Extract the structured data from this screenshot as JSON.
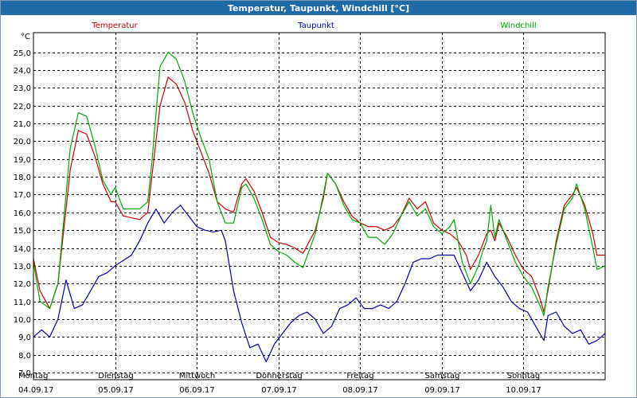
{
  "window": {
    "title": "Temperatur, Taupunkt, Windchill [°C]"
  },
  "chart_data": {
    "type": "line",
    "title": "Temperatur, Taupunkt, Windchill [°C]",
    "ylabel": "°C",
    "ylim": [
      6.6,
      26.1
    ],
    "xlim": [
      0,
      7
    ],
    "yticks": [
      "7,0",
      "8,0",
      "9,0",
      "10,0",
      "11,0",
      "12,0",
      "13,0",
      "14,0",
      "15,0",
      "16,0",
      "17,0",
      "18,0",
      "19,0",
      "20,0",
      "21,0",
      "22,0",
      "23,0",
      "24,0",
      "25,0"
    ],
    "ytick_values": [
      7,
      8,
      9,
      10,
      11,
      12,
      13,
      14,
      15,
      16,
      17,
      18,
      19,
      20,
      21,
      22,
      23,
      24,
      25
    ],
    "days": [
      {
        "day": "Montag",
        "date": "04.09.17"
      },
      {
        "day": "Dienstag",
        "date": "05.09.17"
      },
      {
        "day": "Mittwoch",
        "date": "06.09.17"
      },
      {
        "day": "Donnerstag",
        "date": "07.09.17"
      },
      {
        "day": "Freitag",
        "date": "08.09.17"
      },
      {
        "day": "Samstag",
        "date": "09.09.17"
      },
      {
        "day": "Sonntag",
        "date": "10.09.17"
      }
    ],
    "series": [
      {
        "name": "Temperatur",
        "color": "#cc0000",
        "points": [
          [
            0,
            13.4
          ],
          [
            0.08,
            11.6
          ],
          [
            0.2,
            10.6
          ],
          [
            0.3,
            12.0
          ],
          [
            0.45,
            18.4
          ],
          [
            0.55,
            20.6
          ],
          [
            0.65,
            20.4
          ],
          [
            0.75,
            19.2
          ],
          [
            0.85,
            17.6
          ],
          [
            0.95,
            16.6
          ],
          [
            1.0,
            16.6
          ],
          [
            1.1,
            15.8
          ],
          [
            1.3,
            15.6
          ],
          [
            1.4,
            16.0
          ],
          [
            1.45,
            18.0
          ],
          [
            1.55,
            22.0
          ],
          [
            1.65,
            23.6
          ],
          [
            1.75,
            23.2
          ],
          [
            1.85,
            22.2
          ],
          [
            1.95,
            20.6
          ],
          [
            2.05,
            19.4
          ],
          [
            2.15,
            18.2
          ],
          [
            2.25,
            16.6
          ],
          [
            2.35,
            16.2
          ],
          [
            2.45,
            16.0
          ],
          [
            2.55,
            17.6
          ],
          [
            2.6,
            17.9
          ],
          [
            2.7,
            17.2
          ],
          [
            2.8,
            16.0
          ],
          [
            2.9,
            14.6
          ],
          [
            3.0,
            14.3
          ],
          [
            3.1,
            14.2
          ],
          [
            3.2,
            14.0
          ],
          [
            3.3,
            13.7
          ],
          [
            3.45,
            15.0
          ],
          [
            3.55,
            16.8
          ],
          [
            3.6,
            18.2
          ],
          [
            3.7,
            17.6
          ],
          [
            3.8,
            16.6
          ],
          [
            3.9,
            15.8
          ],
          [
            4.0,
            15.4
          ],
          [
            4.1,
            15.2
          ],
          [
            4.2,
            15.2
          ],
          [
            4.3,
            15.0
          ],
          [
            4.4,
            15.2
          ],
          [
            4.5,
            15.8
          ],
          [
            4.6,
            16.8
          ],
          [
            4.7,
            16.2
          ],
          [
            4.8,
            16.6
          ],
          [
            4.9,
            15.4
          ],
          [
            5.0,
            15.0
          ],
          [
            5.1,
            14.8
          ],
          [
            5.2,
            14.4
          ],
          [
            5.3,
            13.6
          ],
          [
            5.35,
            12.8
          ],
          [
            5.45,
            13.6
          ],
          [
            5.5,
            14.2
          ],
          [
            5.55,
            14.8
          ],
          [
            5.6,
            15.0
          ],
          [
            5.65,
            14.4
          ],
          [
            5.7,
            15.4
          ],
          [
            5.8,
            14.6
          ],
          [
            5.9,
            13.6
          ],
          [
            6.0,
            12.8
          ],
          [
            6.1,
            12.4
          ],
          [
            6.2,
            11.2
          ],
          [
            6.25,
            10.4
          ],
          [
            6.3,
            11.6
          ],
          [
            6.4,
            14.4
          ],
          [
            6.5,
            16.4
          ],
          [
            6.6,
            17.0
          ],
          [
            6.65,
            17.4
          ],
          [
            6.75,
            16.4
          ],
          [
            6.85,
            14.8
          ],
          [
            6.9,
            13.6
          ],
          [
            7.0,
            13.6
          ]
        ]
      },
      {
        "name": "Taupunkt",
        "color": "#0000aa",
        "points": [
          [
            0,
            9.0
          ],
          [
            0.1,
            9.4
          ],
          [
            0.2,
            9.0
          ],
          [
            0.3,
            10.0
          ],
          [
            0.4,
            12.2
          ],
          [
            0.5,
            10.6
          ],
          [
            0.6,
            10.8
          ],
          [
            0.7,
            11.6
          ],
          [
            0.8,
            12.4
          ],
          [
            0.9,
            12.6
          ],
          [
            1.0,
            13.0
          ],
          [
            1.1,
            13.3
          ],
          [
            1.2,
            13.6
          ],
          [
            1.3,
            14.4
          ],
          [
            1.4,
            15.4
          ],
          [
            1.5,
            16.2
          ],
          [
            1.6,
            15.4
          ],
          [
            1.7,
            16.0
          ],
          [
            1.8,
            16.4
          ],
          [
            1.9,
            15.8
          ],
          [
            2.0,
            15.2
          ],
          [
            2.1,
            15.0
          ],
          [
            2.2,
            14.9
          ],
          [
            2.3,
            15.0
          ],
          [
            2.35,
            14.4
          ],
          [
            2.45,
            11.6
          ],
          [
            2.55,
            9.8
          ],
          [
            2.65,
            8.4
          ],
          [
            2.75,
            8.6
          ],
          [
            2.85,
            7.6
          ],
          [
            2.95,
            8.6
          ],
          [
            3.05,
            9.2
          ],
          [
            3.15,
            9.8
          ],
          [
            3.25,
            10.2
          ],
          [
            3.35,
            10.4
          ],
          [
            3.45,
            10.0
          ],
          [
            3.55,
            9.2
          ],
          [
            3.65,
            9.6
          ],
          [
            3.75,
            10.6
          ],
          [
            3.85,
            10.8
          ],
          [
            3.95,
            11.2
          ],
          [
            4.05,
            10.6
          ],
          [
            4.15,
            10.6
          ],
          [
            4.25,
            10.8
          ],
          [
            4.35,
            10.6
          ],
          [
            4.45,
            11.0
          ],
          [
            4.55,
            12.0
          ],
          [
            4.65,
            13.2
          ],
          [
            4.75,
            13.4
          ],
          [
            4.85,
            13.4
          ],
          [
            4.95,
            13.6
          ],
          [
            5.05,
            13.6
          ],
          [
            5.15,
            13.6
          ],
          [
            5.25,
            12.6
          ],
          [
            5.35,
            11.6
          ],
          [
            5.45,
            12.2
          ],
          [
            5.55,
            13.2
          ],
          [
            5.65,
            12.4
          ],
          [
            5.75,
            11.8
          ],
          [
            5.85,
            11.0
          ],
          [
            5.95,
            10.6
          ],
          [
            6.05,
            10.4
          ],
          [
            6.15,
            9.6
          ],
          [
            6.25,
            8.8
          ],
          [
            6.3,
            10.2
          ],
          [
            6.4,
            10.4
          ],
          [
            6.5,
            9.6
          ],
          [
            6.6,
            9.2
          ],
          [
            6.7,
            9.4
          ],
          [
            6.8,
            8.6
          ],
          [
            6.9,
            8.8
          ],
          [
            7.0,
            9.2
          ]
        ]
      },
      {
        "name": "Windchill",
        "color": "#00aa00",
        "points": [
          [
            0,
            13.2
          ],
          [
            0.08,
            11.0
          ],
          [
            0.2,
            10.6
          ],
          [
            0.3,
            12.0
          ],
          [
            0.45,
            19.6
          ],
          [
            0.55,
            21.6
          ],
          [
            0.65,
            21.4
          ],
          [
            0.75,
            19.8
          ],
          [
            0.85,
            17.8
          ],
          [
            0.95,
            17.0
          ],
          [
            1.0,
            17.4
          ],
          [
            1.1,
            16.2
          ],
          [
            1.3,
            16.2
          ],
          [
            1.4,
            16.6
          ],
          [
            1.45,
            18.8
          ],
          [
            1.55,
            24.2
          ],
          [
            1.65,
            25.0
          ],
          [
            1.75,
            24.6
          ],
          [
            1.85,
            23.4
          ],
          [
            1.95,
            21.6
          ],
          [
            2.05,
            20.2
          ],
          [
            2.15,
            19.0
          ],
          [
            2.25,
            16.6
          ],
          [
            2.35,
            15.4
          ],
          [
            2.45,
            15.4
          ],
          [
            2.55,
            17.4
          ],
          [
            2.6,
            17.6
          ],
          [
            2.7,
            16.8
          ],
          [
            2.8,
            15.6
          ],
          [
            2.9,
            14.2
          ],
          [
            3.0,
            13.8
          ],
          [
            3.1,
            13.6
          ],
          [
            3.2,
            13.2
          ],
          [
            3.3,
            12.9
          ],
          [
            3.45,
            14.8
          ],
          [
            3.55,
            17.0
          ],
          [
            3.6,
            18.2
          ],
          [
            3.7,
            17.6
          ],
          [
            3.8,
            16.4
          ],
          [
            3.9,
            15.6
          ],
          [
            4.0,
            15.4
          ],
          [
            4.1,
            14.6
          ],
          [
            4.2,
            14.6
          ],
          [
            4.3,
            14.2
          ],
          [
            4.4,
            14.8
          ],
          [
            4.5,
            15.8
          ],
          [
            4.6,
            16.6
          ],
          [
            4.7,
            15.8
          ],
          [
            4.8,
            16.2
          ],
          [
            4.9,
            15.2
          ],
          [
            5.0,
            14.8
          ],
          [
            5.1,
            15.2
          ],
          [
            5.15,
            15.6
          ],
          [
            5.25,
            13.2
          ],
          [
            5.35,
            12.0
          ],
          [
            5.45,
            13.0
          ],
          [
            5.5,
            13.8
          ],
          [
            5.55,
            14.4
          ],
          [
            5.6,
            16.4
          ],
          [
            5.65,
            14.6
          ],
          [
            5.7,
            15.6
          ],
          [
            5.8,
            14.4
          ],
          [
            5.9,
            13.2
          ],
          [
            6.0,
            12.4
          ],
          [
            6.1,
            11.8
          ],
          [
            6.2,
            10.8
          ],
          [
            6.25,
            10.2
          ],
          [
            6.3,
            11.8
          ],
          [
            6.4,
            14.2
          ],
          [
            6.5,
            16.2
          ],
          [
            6.6,
            16.8
          ],
          [
            6.65,
            17.6
          ],
          [
            6.75,
            16.2
          ],
          [
            6.85,
            14.0
          ],
          [
            6.9,
            12.8
          ],
          [
            7.0,
            13.0
          ]
        ]
      }
    ]
  }
}
